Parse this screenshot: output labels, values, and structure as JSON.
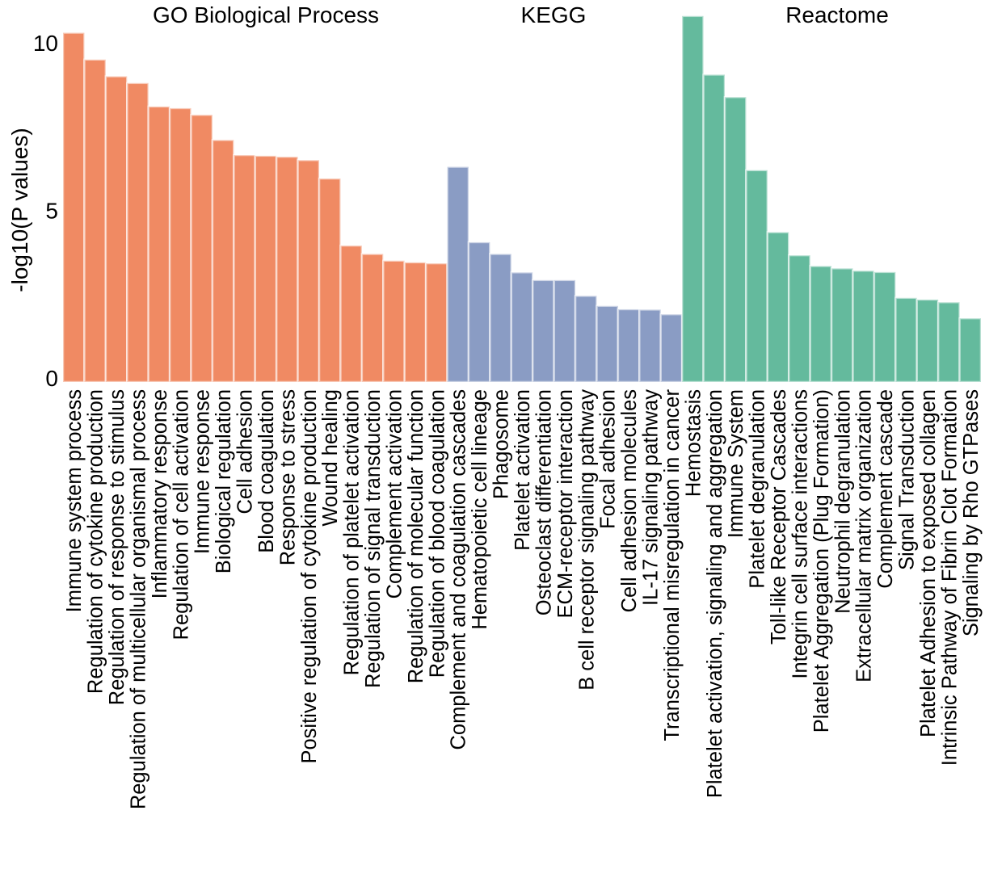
{
  "chart_data": {
    "type": "bar",
    "ylabel": "-log10(P values)",
    "xlabel": "",
    "ylim": [
      0,
      10.9
    ],
    "yticks": [
      "0",
      "5",
      "10"
    ],
    "ytick_values": [
      0,
      5,
      10
    ],
    "grid": false,
    "groups": [
      {
        "name": "GO Biological Process",
        "color": "#F08A63",
        "categories": [
          "Immune system process",
          "Regulation of cytokine production",
          "Regulation of response to stimulus",
          "Regulation of multicellular organismal process",
          "Inflammatory response",
          "Regulation of cell activation",
          "Immune response",
          "Biological regulation",
          "Cell adhesion",
          "Blood coagulation",
          "Response to stress",
          "Positive regulation of cytokine production",
          "Wound healing",
          "Regulation of platelet activation",
          "Regulation of signal transduction",
          "Complement activation",
          "Regulation of molecular function",
          "Regulation of blood coagulation"
        ],
        "values": [
          10.3,
          9.5,
          9.0,
          8.8,
          8.1,
          8.05,
          7.85,
          7.1,
          6.65,
          6.63,
          6.6,
          6.5,
          5.95,
          3.95,
          3.7,
          3.5,
          3.45,
          3.42
        ]
      },
      {
        "name": "KEGG",
        "color": "#8A9CC4",
        "categories": [
          "Complement and coagulation cascades",
          "Hematopoietic cell lineage",
          "Phagosome",
          "Platelet activation",
          "Osteoclast differentiation",
          "ECM-receptor interaction",
          "B cell receptor signaling pathway",
          "Focal adhesion",
          "Cell adhesion molecules",
          "IL-17 signaling pathway",
          "Transcriptional misregulation in cancer"
        ],
        "values": [
          6.3,
          4.05,
          3.7,
          3.15,
          2.92,
          2.92,
          2.45,
          2.15,
          2.05,
          2.04,
          1.9
        ]
      },
      {
        "name": "Reactome",
        "color": "#64BA9D",
        "categories": [
          "Hemostasis",
          "Platelet activation, signaling and aggregation",
          "Immune System",
          "Platelet degranulation",
          "Toll-like Receptor Cascades",
          "Integrin cell surface interactions",
          "Platelet Aggregation (Plug Formation)",
          "Neutrophil degranulation",
          "Extracellular matrix organization",
          "Complement cascade",
          "Signal Transduction",
          "Platelet Adhesion to exposed collagen",
          "Intrinsic Pathway of Fibrin Clot Formation",
          "Signaling by Rho GTPases"
        ],
        "values": [
          10.8,
          9.05,
          8.38,
          6.2,
          4.35,
          3.66,
          3.34,
          3.27,
          3.2,
          3.16,
          2.39,
          2.34,
          2.26,
          1.78
        ]
      }
    ]
  }
}
